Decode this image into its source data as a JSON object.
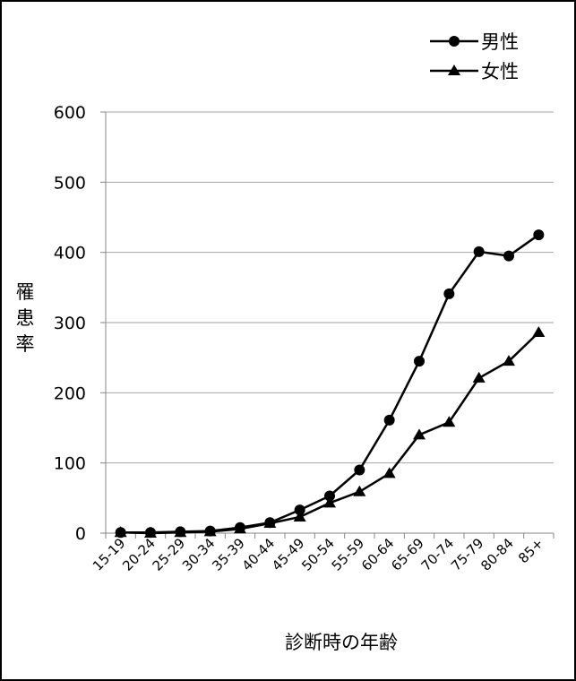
{
  "chart_data": {
    "type": "line",
    "title": "",
    "xlabel": "診断時の年齢",
    "ylabel": "罹患率",
    "ylim": [
      0,
      600
    ],
    "yticks": [
      "0",
      "100",
      "200",
      "300",
      "400",
      "500",
      "600"
    ],
    "grid": "horizontal",
    "legend_position": "top-right",
    "categories": [
      "15-19",
      "20-24",
      "25-29",
      "30-34",
      "35-39",
      "40-44",
      "45-49",
      "50-54",
      "55-59",
      "60-64",
      "65-69",
      "70-74",
      "75-79",
      "80-84",
      "85+"
    ],
    "series": [
      {
        "name": "男性",
        "marker": "circle",
        "values": [
          1,
          1,
          2,
          3,
          8,
          15,
          33,
          53,
          90,
          161,
          245,
          341,
          401,
          395,
          425
        ]
      },
      {
        "name": "女性",
        "marker": "triangle",
        "values": [
          1,
          0,
          1,
          2,
          6,
          14,
          23,
          43,
          59,
          85,
          140,
          158,
          221,
          245,
          286
        ]
      }
    ]
  },
  "colors": {
    "line": "#000000",
    "grid": "#a6a6a6",
    "frame": "#000000"
  }
}
